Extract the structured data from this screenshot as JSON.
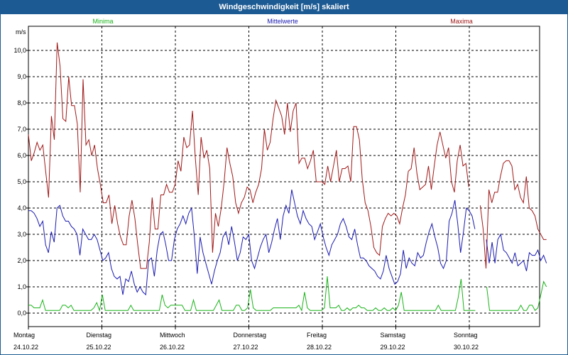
{
  "window": {
    "title": "Windgeschwindigkeit [m/s] skaliert"
  },
  "colors": {
    "min": "#19b219",
    "mean": "#1a1ab0",
    "max": "#a01818",
    "title_bg": "#1c5a93",
    "grid": "#000000"
  },
  "chart_data": {
    "type": "line",
    "title": "Windgeschwindigkeit [m/s] skaliert",
    "ylabel": "m/s",
    "ylim": [
      0,
      10.8
    ],
    "yticks": [
      "0,0",
      "1,0",
      "2,0",
      "3,0",
      "4,0",
      "5,0",
      "6,0",
      "7,0",
      "8,0",
      "9,0",
      "10,0"
    ],
    "xlim": [
      0,
      7.05
    ],
    "days": [
      {
        "name": "Montag",
        "date": "24.10.22"
      },
      {
        "name": "Dienstag",
        "date": "25.10.22"
      },
      {
        "name": "Mittwoch",
        "date": "26.10.22"
      },
      {
        "name": "Donnerstag",
        "date": "27.10.22"
      },
      {
        "name": "Freitag",
        "date": "28.10.22"
      },
      {
        "name": "Samstag",
        "date": "29.10.22"
      },
      {
        "name": "Sonntag",
        "date": "30.10.22"
      }
    ],
    "legend": [
      "Minima",
      "Mittelwerte",
      "Maxima"
    ],
    "series": [
      {
        "name": "Maxima",
        "color": "#a01818",
        "values": [
          6.8,
          5.8,
          6.1,
          6.5,
          6.2,
          6.4,
          5.4,
          4.4,
          7.5,
          6.6,
          10.3,
          9.4,
          7.4,
          7.3,
          9.0,
          7.9,
          7.9,
          7.2,
          4.6,
          8.9,
          6.4,
          6.6,
          6.0,
          6.4,
          5.5,
          4.9,
          4.2,
          4.2,
          4.5,
          3.4,
          4.1,
          3.4,
          2.9,
          2.6,
          2.6,
          3.7,
          4.3,
          3.6,
          2.6,
          1.7,
          1.7,
          1.7,
          2.7,
          4.4,
          3.2,
          3.2,
          4.5,
          4.5,
          4.9,
          4.6,
          4.6,
          4.9,
          5.8,
          5.4,
          6.7,
          6.3,
          6.4,
          7.7,
          5.9,
          4.5,
          6.7,
          5.9,
          6.2,
          5.5,
          2.3,
          3.8,
          3.3,
          4.0,
          5.0,
          6.3,
          5.7,
          5.2,
          4.2,
          3.8,
          4.2,
          4.4,
          4.8,
          4.7,
          4.2,
          4.6,
          4.9,
          5.5,
          7.0,
          6.2,
          6.5,
          7.4,
          8.1,
          7.8,
          7.5,
          6.8,
          8.0,
          6.9,
          7.7,
          8.0,
          5.7,
          5.9,
          5.9,
          5.5,
          5.8,
          6.2,
          5.0,
          5.0,
          5.0,
          4.9,
          5.6,
          5.0,
          5.6,
          6.2,
          5.0,
          5.5,
          5.5,
          5.6,
          5.0,
          7.1,
          7.1,
          6.6,
          5.1,
          4.2,
          3.9,
          3.3,
          2.5,
          2.3,
          2.2,
          3.3,
          3.6,
          3.8,
          3.7,
          3.8,
          3.7,
          3.4,
          4.0,
          4.5,
          5.4,
          5.5,
          6.3,
          5.3,
          4.7,
          4.8,
          4.9,
          5.6,
          4.7,
          5.6,
          6.4,
          6.9,
          6.4,
          5.9,
          6.3,
          5.0,
          4.6,
          5.8,
          6.4,
          5.6,
          5.7,
          4.8,
          null,
          null,
          null,
          4.1,
          3.2,
          1.7,
          4.7,
          4.2,
          4.6,
          4.6,
          5.2,
          5.7,
          5.8,
          5.8,
          5.6,
          4.7,
          4.9,
          4.4,
          4.2,
          5.2,
          4.0,
          3.9,
          3.7,
          3.2,
          3.0,
          2.8,
          2.8
        ]
      },
      {
        "name": "Mittelwerte",
        "color": "#1a1ab0",
        "values": [
          3.9,
          3.9,
          3.8,
          3.6,
          3.3,
          3.5,
          2.6,
          2.3,
          3.1,
          2.7,
          4.0,
          4.1,
          3.7,
          3.5,
          3.5,
          3.3,
          3.2,
          3.0,
          2.2,
          3.2,
          3.0,
          2.8,
          2.8,
          3.0,
          2.8,
          2.4,
          2.0,
          2.1,
          2.3,
          1.7,
          1.4,
          1.3,
          1.4,
          0.7,
          1.3,
          1.2,
          1.6,
          1.1,
          0.8,
          1.0,
          0.8,
          0.7,
          2.0,
          2.1,
          1.4,
          2.4,
          3.0,
          3.1,
          2.6,
          2.0,
          2.0,
          2.8,
          3.2,
          3.4,
          3.7,
          3.4,
          3.8,
          4.0,
          2.9,
          1.5,
          2.9,
          2.3,
          1.9,
          1.5,
          1.1,
          1.6,
          2.0,
          2.3,
          2.9,
          3.1,
          2.6,
          3.3,
          2.7,
          2.0,
          2.3,
          2.9,
          2.8,
          3.0,
          2.0,
          1.7,
          2.1,
          2.5,
          2.8,
          3.0,
          2.3,
          2.7,
          3.2,
          3.6,
          2.8,
          3.7,
          4.1,
          3.8,
          4.7,
          4.2,
          3.7,
          3.4,
          3.9,
          3.6,
          3.4,
          3.3,
          2.8,
          3.1,
          3.4,
          2.9,
          2.5,
          2.2,
          2.6,
          2.8,
          3.0,
          3.4,
          3.6,
          3.3,
          2.9,
          2.8,
          3.2,
          2.6,
          2.1,
          2.1,
          2.0,
          1.8,
          1.7,
          1.6,
          1.4,
          1.3,
          1.6,
          2.2,
          1.7,
          1.4,
          1.1,
          1.2,
          1.5,
          2.4,
          1.7,
          2.1,
          1.9,
          1.8,
          2.3,
          2.1,
          2.2,
          2.7,
          3.1,
          3.4,
          2.9,
          2.5,
          1.9,
          1.7,
          2.0,
          3.5,
          3.8,
          4.3,
          3.4,
          2.3,
          3.1,
          4.0,
          3.9,
          3.7,
          3.2,
          null,
          null,
          null,
          2.8,
          1.9,
          2.7,
          1.9,
          2.8,
          3.0,
          2.4,
          2.3,
          2.1,
          1.9,
          2.3,
          1.8,
          1.9,
          2.0,
          1.6,
          2.3,
          2.2,
          2.2,
          2.4,
          2.0,
          2.2,
          1.9
        ]
      },
      {
        "name": "Minima",
        "color": "#19b219",
        "values": [
          0.3,
          0.3,
          0.2,
          0.2,
          0.2,
          0.5,
          0.1,
          0.1,
          0.1,
          0.1,
          0.1,
          0.1,
          0.3,
          0.3,
          0.2,
          0.3,
          0.1,
          0.1,
          0.1,
          0.1,
          0.1,
          0.1,
          0.1,
          0.2,
          0.4,
          0.1,
          0.7,
          0.1,
          0.1,
          0.1,
          0.1,
          0.1,
          0.1,
          0.1,
          0.1,
          0.1,
          0.3,
          0.1,
          0.1,
          0.1,
          0.1,
          0.1,
          0.1,
          0.1,
          0.1,
          0.1,
          0.1,
          0.7,
          0.3,
          0.2,
          0.3,
          0.3,
          0.3,
          0.3,
          0.3,
          0.1,
          0.1,
          0.1,
          0.5,
          0.1,
          0.1,
          0.1,
          0.1,
          0.1,
          0.1,
          0.1,
          0.3,
          0.5,
          0.1,
          0.1,
          0.1,
          0.1,
          0.1,
          0.3,
          0.3,
          0.1,
          0.1,
          0.2,
          0.9,
          0.2,
          0.1,
          0.1,
          0.1,
          0.1,
          0.1,
          0.1,
          0.2,
          0.2,
          0.2,
          0.2,
          0.2,
          0.2,
          0.2,
          0.2,
          0.2,
          0.3,
          0.1,
          0.8,
          0.2,
          0.1,
          0.1,
          0.1,
          0.1,
          0.1,
          0.2,
          1.4,
          0.2,
          0.2,
          0.2,
          0.3,
          0.1,
          0.1,
          0.2,
          0.1,
          0.2,
          0.2,
          0.3,
          0.2,
          0.2,
          0.1,
          0.1,
          0.1,
          0.2,
          0.1,
          0.1,
          0.2,
          0.1,
          0.1,
          0.2,
          0.1,
          0.3,
          0.8,
          0.1,
          0.1,
          0.1,
          0.1,
          0.1,
          0.1,
          0.1,
          0.1,
          0.1,
          0.1,
          0.1,
          0.1,
          0.3,
          0.1,
          0.1,
          0.1,
          0.1,
          0.1,
          0.1,
          0.6,
          1.3,
          0.1,
          0.1,
          0.1,
          0.1,
          0.1,
          null,
          null,
          null,
          1.0,
          0.1,
          0.1,
          0.1,
          0.1,
          0.1,
          0.1,
          0.1,
          0.1,
          0.1,
          0.1,
          0.1,
          0.3,
          0.1,
          0.1,
          0.3,
          0.3,
          0.1,
          0.2,
          0.7,
          1.2,
          1.0
        ]
      }
    ]
  }
}
